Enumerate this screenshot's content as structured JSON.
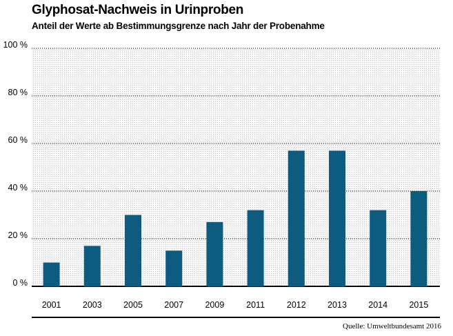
{
  "title": "Glyphosat-Nachweis in Urinproben",
  "subtitle": "Anteil der Werte ab Bestimmungsgrenze nach Jahr der Probenahme",
  "source": "Quelle: Umweltbundesamt 2016",
  "colors": {
    "bar": "#0d5c80",
    "plot_background": "#f2f2f2",
    "axis": "#000000"
  },
  "chart_data": {
    "type": "bar",
    "title": "Glyphosat-Nachweis in Urinproben",
    "subtitle": "Anteil der Werte ab Bestimmungsgrenze nach Jahr der Probenahme",
    "xlabel": "",
    "ylabel": "",
    "categories": [
      "2001",
      "2003",
      "2005",
      "2007",
      "2009",
      "2011",
      "2012",
      "2013",
      "2014",
      "2015"
    ],
    "values": [
      10,
      17,
      30,
      15,
      27,
      32,
      57,
      57,
      32,
      40
    ],
    "ylim": [
      0,
      100
    ],
    "yticks": [
      0,
      20,
      40,
      60,
      80,
      100
    ],
    "ytick_labels": [
      "0 %",
      "20 %",
      "40 %",
      "60 %",
      "80 %",
      "100 %"
    ],
    "grid": "dotted horizontal",
    "legend": "none"
  }
}
